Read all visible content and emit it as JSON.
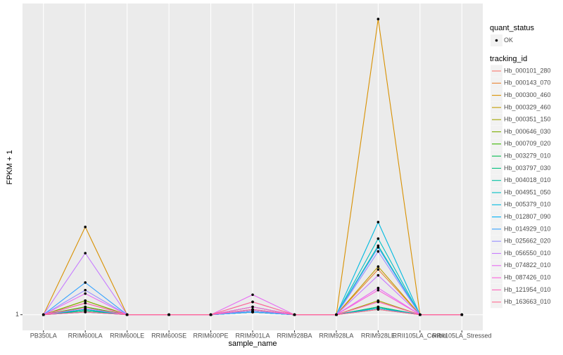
{
  "chart_data": {
    "type": "line",
    "xlabel": "sample_name",
    "ylabel": "FPKM + 1",
    "log_scale": true,
    "grid": true,
    "ylim": [
      0.89,
      10.1
    ],
    "yticks": [
      1
    ],
    "point_legend": {
      "title": "quant_status",
      "label": "OK"
    },
    "point_color": "#000000",
    "legend_title": "tracking_id",
    "categories": [
      "PB350LA",
      "RRIM600LA",
      "RRIM600LE",
      "RRIM600SE",
      "RRIM600PE",
      "RRIM901LA",
      "RRIM928BA",
      "RRIM928LA",
      "RRIM928LE",
      "RRII105LA_Control",
      "RRII105LA_Stressed"
    ],
    "series": [
      {
        "name": "Hb_000101_280",
        "color": "#F8766D",
        "values": [
          1,
          1.03,
          1,
          1,
          1,
          1.04,
          1,
          1,
          1.1,
          1,
          1
        ]
      },
      {
        "name": "Hb_000143_070",
        "color": "#EA8331",
        "values": [
          1,
          1.06,
          1,
          1,
          1,
          1.03,
          1,
          1,
          1.4,
          1,
          1
        ]
      },
      {
        "name": "Hb_000300_460",
        "color": "#D89000",
        "values": [
          1,
          1.92,
          1,
          1,
          1,
          1.02,
          1,
          1,
          9.0,
          1,
          1
        ]
      },
      {
        "name": "Hb_000329_460",
        "color": "#C09B00",
        "values": [
          1,
          1.11,
          1,
          1,
          1,
          1.02,
          1,
          1,
          1.43,
          1,
          1
        ]
      },
      {
        "name": "Hb_000351_150",
        "color": "#A3A500",
        "values": [
          1,
          1.09,
          1,
          1,
          1,
          1.02,
          1,
          1,
          1.11,
          1,
          1
        ]
      },
      {
        "name": "Hb_000646_030",
        "color": "#7CAE00",
        "values": [
          1,
          1.11,
          1,
          1,
          1,
          1.02,
          1,
          1,
          1.06,
          1,
          1
        ]
      },
      {
        "name": "Hb_000709_020",
        "color": "#39B600",
        "values": [
          1,
          1.06,
          1,
          1,
          1,
          1.04,
          1,
          1,
          1.05,
          1,
          1
        ]
      },
      {
        "name": "Hb_003279_010",
        "color": "#00BB4E",
        "values": [
          1,
          1.04,
          1,
          1,
          1,
          1.06,
          1,
          1,
          1.04,
          1,
          1
        ]
      },
      {
        "name": "Hb_003797_030",
        "color": "#00BF7D",
        "values": [
          1,
          1.03,
          1,
          1,
          1,
          1.02,
          1,
          1,
          1.06,
          1,
          1
        ]
      },
      {
        "name": "Hb_004018_010",
        "color": "#00C1A3",
        "values": [
          1,
          1.02,
          1,
          1,
          1,
          1.02,
          1,
          1,
          1.67,
          1,
          1
        ]
      },
      {
        "name": "Hb_004951_050",
        "color": "#00BFC4",
        "values": [
          1,
          1.04,
          1,
          1,
          1,
          1.02,
          1,
          1,
          1.76,
          1,
          1
        ]
      },
      {
        "name": "Hb_005379_010",
        "color": "#00BAE0",
        "values": [
          1,
          1.04,
          1,
          1,
          1,
          1.02,
          1,
          1,
          1.99,
          1,
          1
        ]
      },
      {
        "name": "Hb_012807_090",
        "color": "#00B0F6",
        "values": [
          1,
          1.02,
          1,
          1,
          1,
          1.02,
          1,
          1,
          1.05,
          1,
          1
        ]
      },
      {
        "name": "Hb_014929_010",
        "color": "#35A2FF",
        "values": [
          1,
          1.27,
          1,
          1,
          1,
          1.02,
          1,
          1,
          1.65,
          1,
          1
        ]
      },
      {
        "name": "Hb_025662_020",
        "color": "#9590FF",
        "values": [
          1,
          1.2,
          1,
          1,
          1,
          1.03,
          1,
          1,
          1.6,
          1,
          1
        ]
      },
      {
        "name": "Hb_056550_010",
        "color": "#C77CFF",
        "values": [
          1,
          1.58,
          1,
          1,
          1,
          1.1,
          1,
          1,
          1.34,
          1,
          1
        ]
      },
      {
        "name": "Hb_074822_010",
        "color": "#E76BF3",
        "values": [
          1,
          1.17,
          1,
          1,
          1,
          1.16,
          1,
          1,
          1.22,
          1,
          1
        ]
      },
      {
        "name": "Hb_087426_010",
        "color": "#FA62DB",
        "values": [
          1,
          1.05,
          1,
          1,
          1,
          1.06,
          1,
          1,
          1.2,
          1,
          1
        ]
      },
      {
        "name": "Hb_121954_010",
        "color": "#FF62BC",
        "values": [
          1,
          1.09,
          1,
          1,
          1,
          1.04,
          1,
          1,
          1.1,
          1,
          1
        ]
      },
      {
        "name": "Hb_163663_010",
        "color": "#FF6C91",
        "values": [
          1,
          1.02,
          1,
          1,
          1,
          1.1,
          1,
          1,
          1.04,
          1,
          1
        ]
      }
    ]
  }
}
